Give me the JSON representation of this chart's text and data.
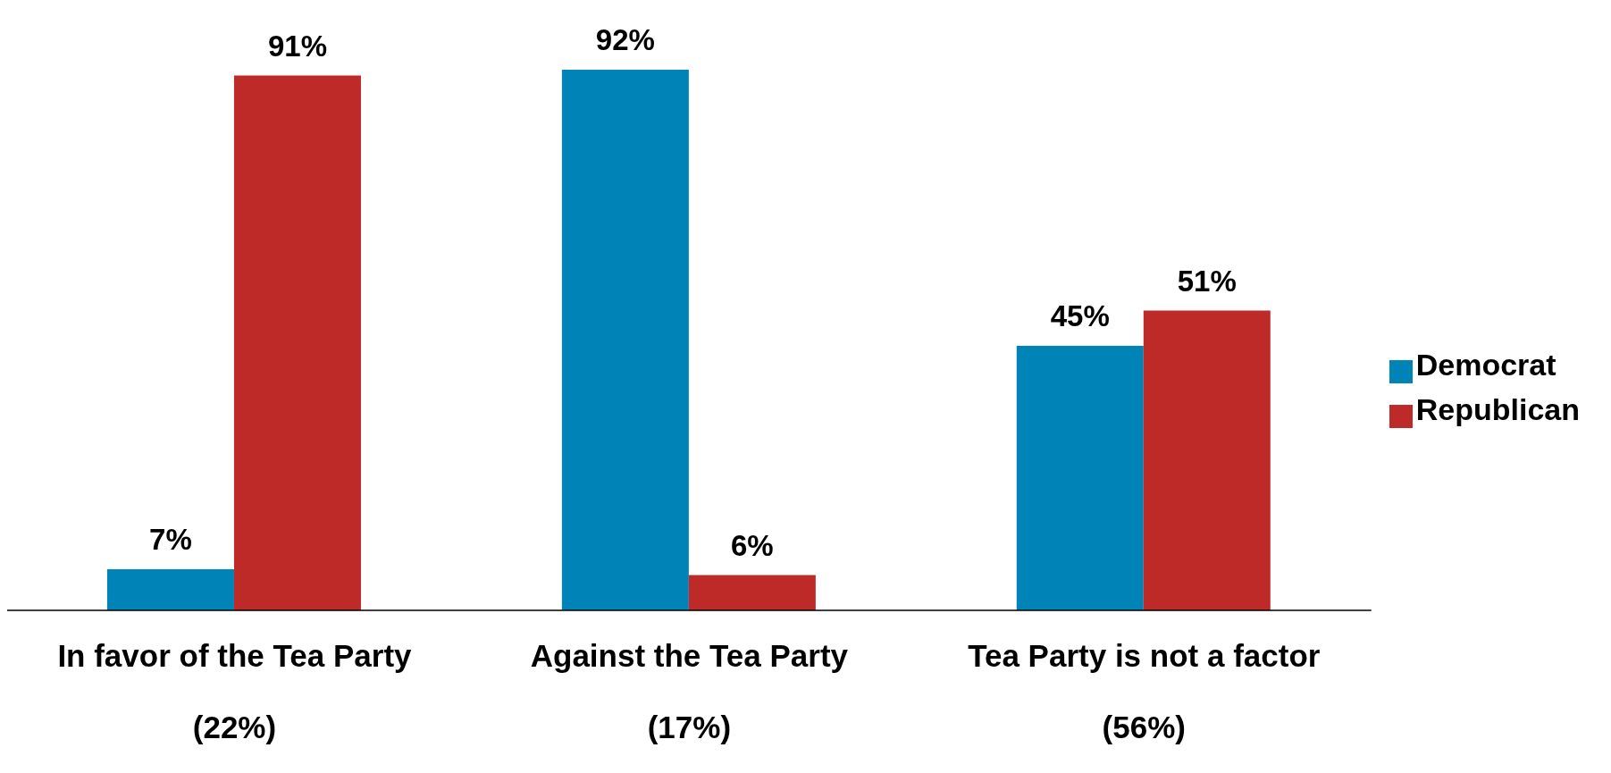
{
  "chart_data": {
    "type": "bar",
    "categories": [
      "In favor of the Tea Party\n(22%)",
      "Against the Tea Party\n(17%)",
      "Tea Party is not a factor\n(56%)"
    ],
    "series": [
      {
        "name": "Democrat",
        "color": "#0084b8",
        "values": [
          7,
          92,
          45
        ],
        "value_labels": [
          "7%",
          "92%",
          "45%"
        ]
      },
      {
        "name": "Republican",
        "color": "#be2a28",
        "values": [
          91,
          6,
          51
        ],
        "value_labels": [
          "91%",
          "6%",
          "51%"
        ]
      }
    ],
    "legend": "right"
  }
}
